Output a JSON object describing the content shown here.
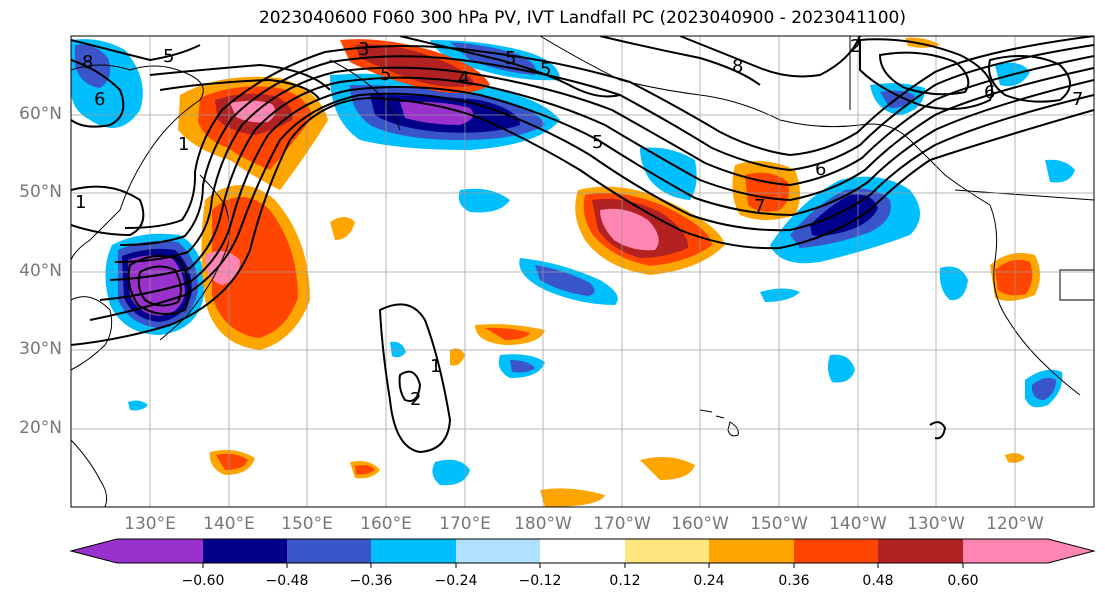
{
  "title": "2023040600 F060 300 hPa PV, IVT Landfall PC (2023040900 - 2023041100)",
  "lat_labels": [
    "60°N",
    "50°N",
    "40°N",
    "30°N",
    "20°N"
  ],
  "lon_labels": [
    "130°E",
    "140°E",
    "150°E",
    "160°E",
    "170°E",
    "180°W",
    "170°W",
    "160°W",
    "150°W",
    "140°W",
    "130°W",
    "120°W"
  ],
  "colorbar": {
    "tick_labels": [
      "−0.60",
      "−0.48",
      "−0.36",
      "−0.24",
      "−0.12",
      "0.12",
      "0.24",
      "0.36",
      "0.48",
      "0.60"
    ],
    "colors": [
      "#9932cc",
      "#00008b",
      "#3a55c9",
      "#00bfff",
      "#b0e2ff",
      "#ffffff",
      "#ffe680",
      "#ffa500",
      "#ff4500",
      "#b22222",
      "#ff85b3"
    ]
  },
  "contour_labels": [
    "5",
    "5",
    "5",
    "5",
    "8",
    "6",
    "6",
    "7",
    "7",
    "6",
    "2",
    "3",
    "4",
    "1",
    "1",
    "2",
    "1",
    "8",
    "5"
  ]
}
